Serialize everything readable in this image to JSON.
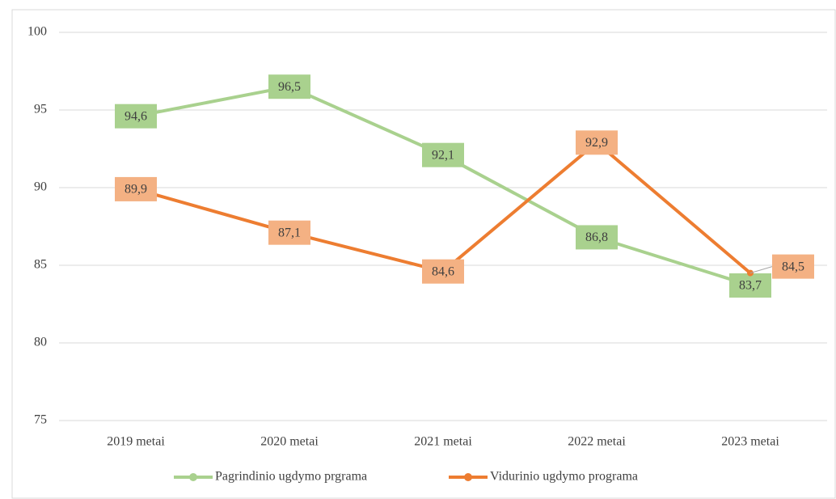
{
  "chart_data": {
    "type": "line",
    "categories": [
      "2019 metai",
      "2020 metai",
      "2021 metai",
      "2022 metai",
      "2023 metai"
    ],
    "series": [
      {
        "name": "Pagrindinio ugdymo prgrama",
        "color": "#a9d18e",
        "label_color": "#a9d18e",
        "values": [
          94.6,
          96.5,
          92.1,
          86.8,
          83.7
        ],
        "value_labels": [
          "94,6",
          "96,5",
          "92,1",
          "86,8",
          "83,7"
        ]
      },
      {
        "name": "Vidurinio ugdymo programa",
        "color": "#ed7d31",
        "label_color": "#f4b183",
        "values": [
          89.9,
          87.1,
          84.6,
          92.9,
          84.5
        ],
        "value_labels": [
          "89,9",
          "87,1",
          "84,6",
          "92,9",
          "84,5"
        ]
      }
    ],
    "ylim": [
      75,
      100
    ],
    "yticks": [
      75,
      80,
      85,
      90,
      95,
      100
    ],
    "grid": true,
    "legend": "bottom"
  }
}
